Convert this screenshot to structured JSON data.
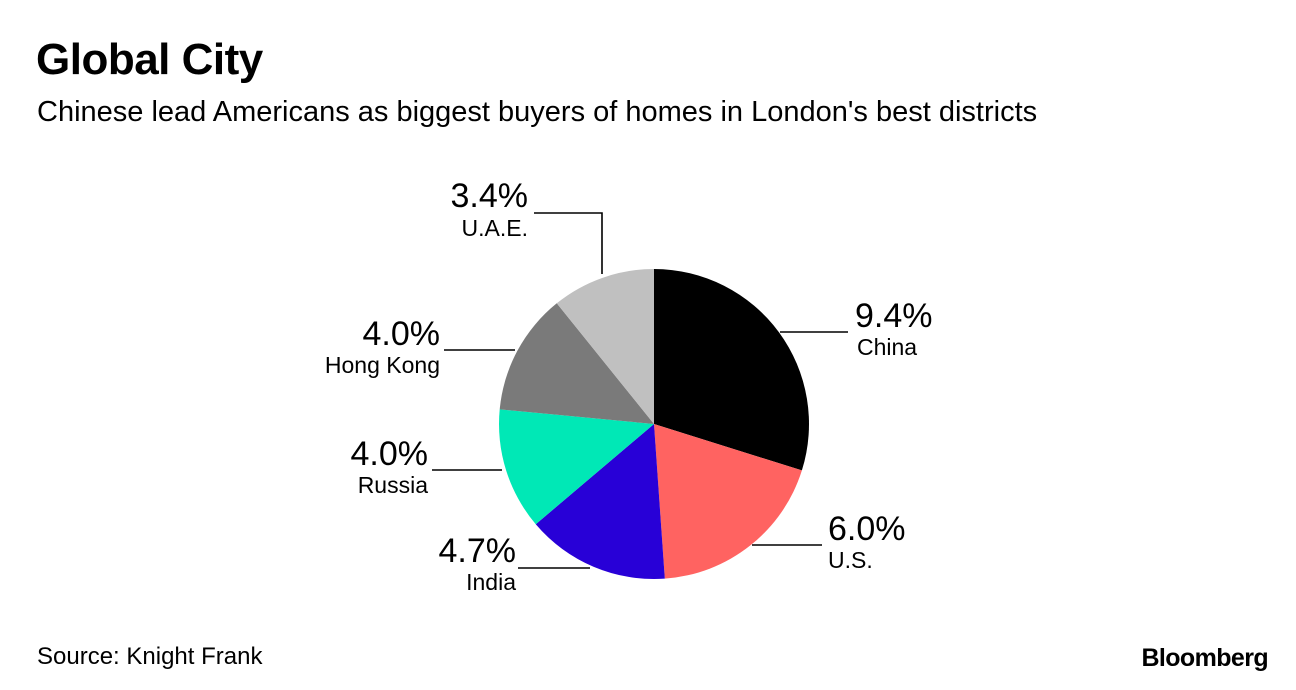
{
  "header": {
    "title": "Global City",
    "subtitle": "Chinese lead Americans as biggest buyers of homes in London's best districts"
  },
  "footer": {
    "source": "Source: Knight Frank",
    "brand": "Bloomberg"
  },
  "chart_data": {
    "type": "pie",
    "title": "Global City",
    "subtitle": "Chinese lead Americans as biggest buyers of homes in London's best districts",
    "slices": [
      {
        "label": "China",
        "value": 9.4,
        "value_label": "9.4%",
        "color": "#000000"
      },
      {
        "label": "U.S.",
        "value": 6.0,
        "value_label": "6.0%",
        "color": "#ff6361"
      },
      {
        "label": "India",
        "value": 4.7,
        "value_label": "4.7%",
        "color": "#2800d7"
      },
      {
        "label": "Russia",
        "value": 4.0,
        "value_label": "4.0%",
        "color": "#00e8b6"
      },
      {
        "label": "Hong Kong",
        "value": 4.0,
        "value_label": "4.0%",
        "color": "#7a7a7a"
      },
      {
        "label": "U.A.E.",
        "value": 3.4,
        "value_label": "3.4%",
        "color": "#c0c0c0"
      }
    ],
    "start_angle": "12 o'clock",
    "direction": "clockwise",
    "legend": "none"
  }
}
